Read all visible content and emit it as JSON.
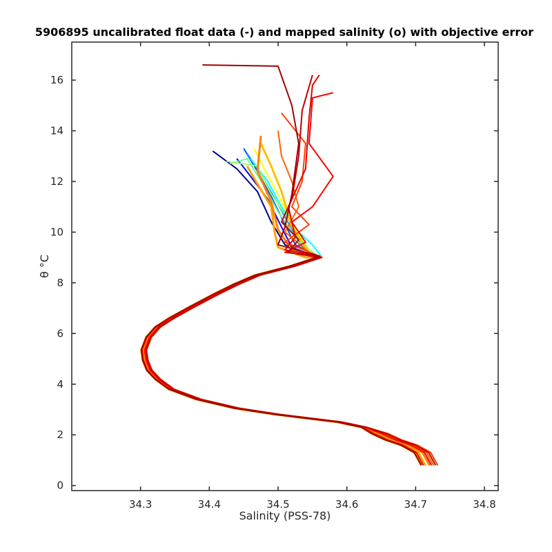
{
  "chart_data": {
    "type": "line",
    "title": "5906895 uncalibrated float data (-) and mapped salinity (o) with objective error",
    "xlabel": "Salinity (PSS-78)",
    "ylabel": "θ °C",
    "xlim": [
      34.2,
      34.82
    ],
    "ylim": [
      -0.2,
      17.5
    ],
    "xticks": [
      34.3,
      34.4,
      34.5,
      34.6,
      34.7,
      34.8
    ],
    "yticks": [
      0,
      2,
      4,
      6,
      8,
      10,
      12,
      14,
      16
    ],
    "xtick_labels": [
      "34.3",
      "34.4",
      "34.5",
      "34.6",
      "34.7",
      "34.8"
    ],
    "ytick_labels": [
      "0",
      "2",
      "4",
      "6",
      "8",
      "10",
      "12",
      "14",
      "16"
    ],
    "grid": false,
    "legend": "none",
    "colormap": "jet (profile index)",
    "deep_curve": {
      "salinity": [
        34.56,
        34.52,
        34.47,
        34.44,
        34.41,
        34.375,
        34.345,
        34.325,
        34.312,
        34.305,
        34.307,
        34.313,
        34.325,
        34.345,
        34.385,
        34.44,
        34.5,
        34.545,
        34.59,
        34.625,
        34.648,
        34.668,
        34.69,
        34.71,
        34.72
      ],
      "theta": [
        9.0,
        8.65,
        8.3,
        7.95,
        7.55,
        7.05,
        6.6,
        6.25,
        5.85,
        5.35,
        4.95,
        4.55,
        4.2,
        3.8,
        3.4,
        3.05,
        2.8,
        2.65,
        2.5,
        2.3,
        2.05,
        1.8,
        1.6,
        1.3,
        0.8
      ]
    },
    "series": [
      {
        "color": "#00008f",
        "salinity": [
          34.405,
          34.44,
          34.47,
          34.49,
          34.51
        ],
        "theta": [
          13.2,
          12.5,
          11.6,
          10.4,
          9.5
        ]
      },
      {
        "color": "#0000ff",
        "salinity": [
          34.44,
          34.46,
          34.485,
          34.505,
          34.52
        ],
        "theta": [
          12.9,
          12.2,
          11.3,
          10.2,
          9.4
        ]
      },
      {
        "color": "#0050ff",
        "salinity": [
          34.45,
          34.47,
          34.49,
          34.51,
          34.525
        ],
        "theta": [
          13.3,
          12.4,
          11.4,
          10.3,
          9.5
        ]
      },
      {
        "color": "#00a0ff",
        "salinity": [
          34.455,
          34.475,
          34.5,
          34.52,
          34.535
        ],
        "theta": [
          13.1,
          12.3,
          11.1,
          10.1,
          9.45
        ]
      },
      {
        "color": "#00ffff",
        "salinity": [
          34.46,
          34.485,
          34.505,
          34.53,
          34.55
        ],
        "theta": [
          12.9,
          12.0,
          11.0,
          10.0,
          9.5
        ]
      },
      {
        "color": "#60ffa0",
        "salinity": [
          34.43,
          34.455,
          34.48,
          34.5,
          34.53
        ],
        "theta": [
          12.7,
          12.9,
          11.8,
          10.8,
          9.6
        ]
      },
      {
        "color": "#a0ff60",
        "salinity": [
          34.425,
          34.47,
          34.49,
          34.515,
          34.545
        ],
        "theta": [
          12.8,
          12.6,
          11.5,
          10.5,
          9.3
        ]
      },
      {
        "color": "#ffff00",
        "salinity": [
          34.465,
          34.48,
          34.5,
          34.52,
          34.545
        ],
        "theta": [
          13.3,
          12.5,
          11.5,
          10.4,
          9.1
        ]
      },
      {
        "color": "#ffbf00",
        "salinity": [
          34.475,
          34.49,
          34.505,
          34.52,
          34.55
        ],
        "theta": [
          13.5,
          12.6,
          11.6,
          10.2,
          9.0
        ]
      },
      {
        "color": "#ffa000",
        "salinity": [
          34.455,
          34.47,
          34.49,
          34.495,
          34.5,
          34.54
        ],
        "theta": [
          12.6,
          11.9,
          11.0,
          10.0,
          9.4,
          9.0
        ]
      },
      {
        "color": "#ff8000",
        "salinity": [
          34.475,
          34.47,
          34.49,
          34.5,
          34.52,
          34.56
        ],
        "theta": [
          13.8,
          12.4,
          11.2,
          10.1,
          9.3,
          9.05
        ]
      },
      {
        "color": "#ff6000",
        "salinity": [
          34.5,
          34.505,
          34.52,
          34.53,
          34.51,
          34.545,
          34.55
        ],
        "theta": [
          14.0,
          13.0,
          12.0,
          11.0,
          10.0,
          9.2,
          9.0
        ]
      },
      {
        "color": "#ff4000",
        "salinity": [
          34.505,
          34.54,
          34.535,
          34.52,
          34.545,
          34.51,
          34.56
        ],
        "theta": [
          14.7,
          13.5,
          12.0,
          11.0,
          10.3,
          9.6,
          9.05
        ]
      },
      {
        "color": "#ff0000",
        "salinity": [
          34.58,
          34.55,
          34.545,
          34.58,
          34.55,
          34.52,
          34.54,
          34.51,
          34.56
        ],
        "theta": [
          15.5,
          15.3,
          13.5,
          12.2,
          11.0,
          10.4,
          9.6,
          9.2,
          9.05
        ]
      },
      {
        "color": "#e00000",
        "salinity": [
          34.56,
          34.55,
          34.545,
          34.54,
          34.515,
          34.525,
          34.51,
          34.56
        ],
        "theta": [
          16.2,
          15.8,
          14.5,
          12.5,
          11.0,
          9.8,
          9.3,
          9.05
        ]
      },
      {
        "color": "#c00000",
        "salinity": [
          34.55,
          34.535,
          34.53,
          34.52,
          34.505,
          34.53,
          34.515,
          34.56
        ],
        "theta": [
          16.2,
          14.8,
          13.0,
          11.3,
          10.4,
          9.7,
          9.2,
          9.0
        ]
      },
      {
        "color": "#a00000",
        "salinity": [
          34.39,
          34.5,
          34.52,
          34.53,
          34.52,
          34.51,
          34.5,
          34.56
        ],
        "theta": [
          16.6,
          16.55,
          15.0,
          13.5,
          11.5,
          10.2,
          9.5,
          9.05
        ]
      }
    ]
  }
}
